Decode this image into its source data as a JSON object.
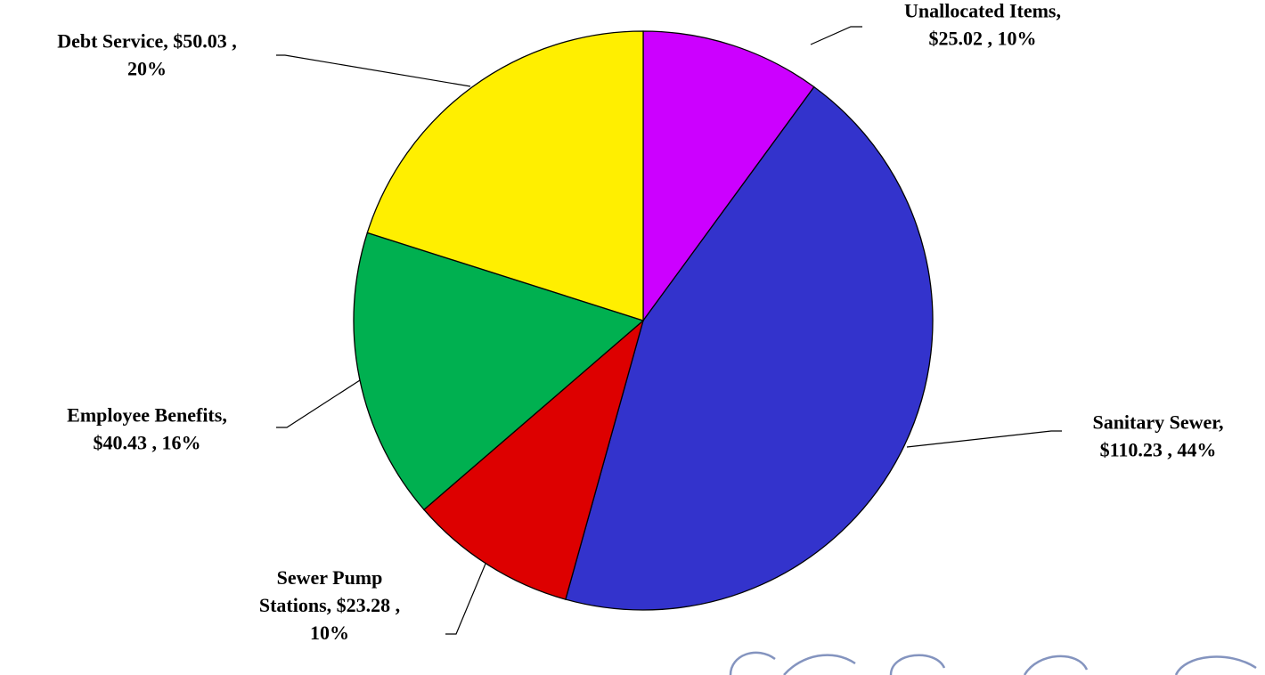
{
  "chart_data": {
    "type": "pie",
    "start_angle_deg": 0,
    "direction": "clockwise",
    "slices": [
      {
        "name": "Unallocated Items",
        "value": 25.02,
        "percent": "10%",
        "color": "#cc00ff",
        "label_lines": [
          "Unallocated Items,",
          "$25.02 , 10%"
        ]
      },
      {
        "name": "Sanitary Sewer",
        "value": 110.23,
        "percent": "44%",
        "color": "#3333cc",
        "label_lines": [
          "Sanitary Sewer,",
          "$110.23 , 44%"
        ]
      },
      {
        "name": "Sewer Pump Stations",
        "value": 23.28,
        "percent": "10%",
        "color": "#dd0000",
        "label_lines": [
          "Sewer Pump",
          "Stations,  $23.28 ,",
          "10%"
        ]
      },
      {
        "name": "Employee Benefits",
        "value": 40.43,
        "percent": "16%",
        "color": "#00b050",
        "label_lines": [
          "Employee Benefits,",
          "$40.43 , 16%"
        ]
      },
      {
        "name": "Debt Service",
        "value": 50.03,
        "percent": "20%",
        "color": "#ffef00",
        "label_lines": [
          "Debt Service,  $50.03 ,",
          "20%"
        ]
      }
    ]
  }
}
